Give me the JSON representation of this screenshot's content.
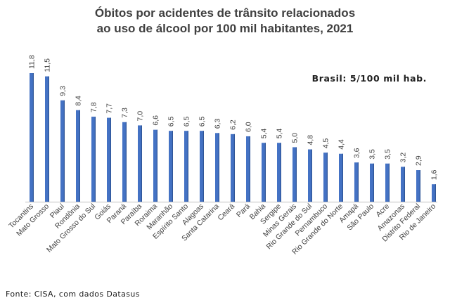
{
  "header": {
    "title_line1": "Óbitos por acidentes de trânsito relacionados",
    "title_line2": "ao uso de álcool por 100 mil habitantes, 2021"
  },
  "annotation": "Brasil: 5/100 mil hab.",
  "source": "Fonte: CISA, com dados Datasus",
  "colors": {
    "bar": "#4472c4",
    "bar_edge": "#2f5597",
    "text": "#404040"
  },
  "chart_data": {
    "type": "bar",
    "title": "Óbitos por acidentes de trânsito relacionados ao uso de álcool por 100 mil habitantes, 2021",
    "xlabel": "",
    "ylabel": "",
    "ylim": [
      0,
      12.5
    ],
    "grid": false,
    "categories": [
      "Tocantins",
      "Mato Grosso",
      "Piauí",
      "Rondônia",
      "Mato Grosso do Sul",
      "Goiás",
      "Paraná",
      "Paraíba",
      "Roraima",
      "Maranhão",
      "Espírito Santo",
      "Alagoas",
      "Santa Catarina",
      "Ceará",
      "Pará",
      "Bahia",
      "Sergipe",
      "Minas Gerais",
      "Rio Grande do Sul",
      "Pernambuco",
      "Rio Grande do Norte",
      "Amapá",
      "São Paulo",
      "Acre",
      "Amazonas",
      "Distrito Federal",
      "Rio de Janeiro"
    ],
    "values": [
      11.8,
      11.5,
      9.3,
      8.4,
      7.8,
      7.7,
      7.3,
      7.0,
      6.6,
      6.5,
      6.5,
      6.5,
      6.3,
      6.2,
      6.0,
      5.4,
      5.4,
      5.0,
      4.8,
      4.5,
      4.4,
      3.6,
      3.5,
      3.5,
      3.2,
      2.9,
      1.6
    ],
    "value_labels": [
      "11,8",
      "11,5",
      "9,3",
      "8,4",
      "7,8",
      "7,7",
      "7,3",
      "7,0",
      "6,6",
      "6,5",
      "6,5",
      "6,5",
      "6,3",
      "6,2",
      "6,0",
      "5,4",
      "5,4",
      "5,0",
      "4,8",
      "4,5",
      "4,4",
      "3,6",
      "3,5",
      "3,5",
      "3,2",
      "2,9",
      "1,6"
    ]
  }
}
